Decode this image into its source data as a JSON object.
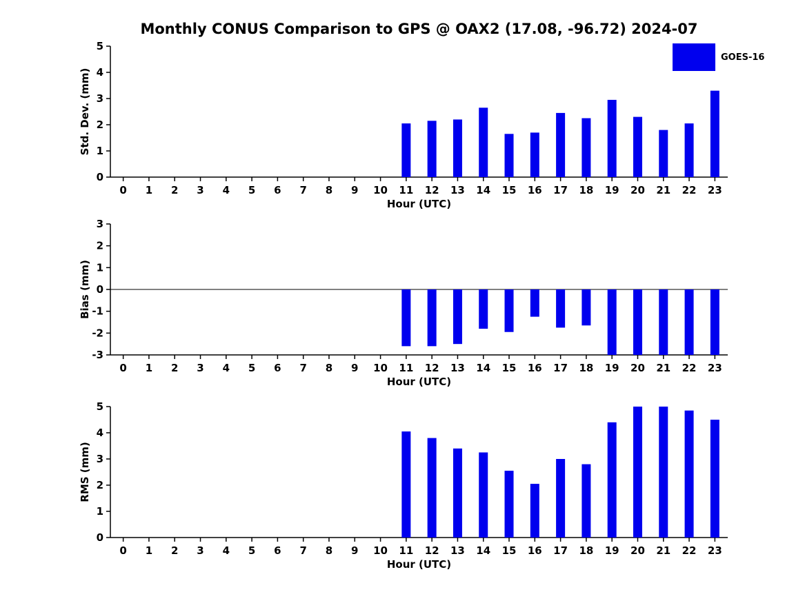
{
  "title": "Monthly CONUS Comparison to GPS @ OAX2 (17.08, -96.72) 2024-07",
  "legend": {
    "label": "GOES-16",
    "color": "#0000ee"
  },
  "colors": {
    "bar": "#0000ee",
    "axis": "#000000",
    "background": "#ffffff"
  },
  "chart_data": [
    {
      "type": "bar",
      "name": "std-dev",
      "title": "",
      "ylabel": "Std. Dev. (mm)",
      "xlabel": "Hour (UTC)",
      "ylim": [
        0,
        5
      ],
      "yticks": [
        0,
        1,
        2,
        3,
        4,
        5
      ],
      "grid": false,
      "legend_position": "top-right",
      "categories": [
        "0",
        "1",
        "2",
        "3",
        "4",
        "5",
        "6",
        "7",
        "8",
        "9",
        "10",
        "11",
        "12",
        "13",
        "14",
        "15",
        "16",
        "17",
        "18",
        "19",
        "20",
        "21",
        "22",
        "23"
      ],
      "values": [
        null,
        null,
        null,
        null,
        null,
        null,
        null,
        null,
        null,
        null,
        null,
        2.05,
        2.15,
        2.2,
        2.65,
        1.65,
        1.7,
        2.45,
        2.25,
        2.95,
        2.3,
        1.8,
        2.05,
        3.3
      ]
    },
    {
      "type": "bar",
      "name": "bias",
      "title": "",
      "ylabel": "Bias (mm)",
      "xlabel": "Hour (UTC)",
      "ylim": [
        -3,
        3
      ],
      "yticks": [
        -3,
        -2,
        -1,
        0,
        1,
        2,
        3
      ],
      "grid": false,
      "zero_line": true,
      "categories": [
        "0",
        "1",
        "2",
        "3",
        "4",
        "5",
        "6",
        "7",
        "8",
        "9",
        "10",
        "11",
        "12",
        "13",
        "14",
        "15",
        "16",
        "17",
        "18",
        "19",
        "20",
        "21",
        "22",
        "23"
      ],
      "values": [
        null,
        null,
        null,
        null,
        null,
        null,
        null,
        null,
        null,
        null,
        null,
        -2.6,
        -2.6,
        -2.5,
        -1.8,
        -1.95,
        -1.25,
        -1.75,
        -1.65,
        -3.0,
        -3.0,
        -3.0,
        -3.0,
        -3.0
      ]
    },
    {
      "type": "bar",
      "name": "rms",
      "title": "",
      "ylabel": "RMS (mm)",
      "xlabel": "Hour (UTC)",
      "ylim": [
        0,
        5
      ],
      "yticks": [
        0,
        1,
        2,
        3,
        4,
        5
      ],
      "grid": false,
      "categories": [
        "0",
        "1",
        "2",
        "3",
        "4",
        "5",
        "6",
        "7",
        "8",
        "9",
        "10",
        "11",
        "12",
        "13",
        "14",
        "15",
        "16",
        "17",
        "18",
        "19",
        "20",
        "21",
        "22",
        "23"
      ],
      "values": [
        null,
        null,
        null,
        null,
        null,
        null,
        null,
        null,
        null,
        null,
        null,
        4.05,
        3.8,
        3.4,
        3.25,
        2.55,
        2.05,
        3.0,
        2.8,
        4.4,
        5.0,
        5.0,
        4.85,
        4.5
      ]
    }
  ]
}
